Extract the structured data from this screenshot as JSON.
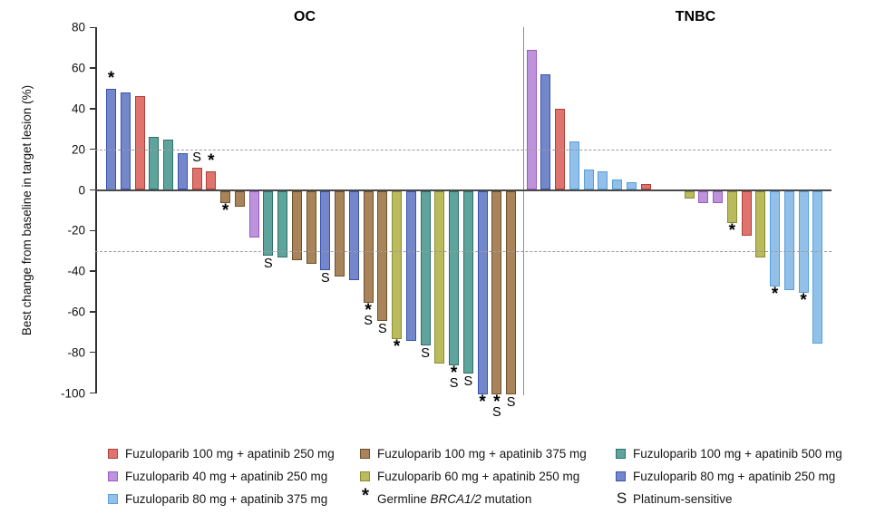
{
  "titles": {
    "left_panel": "OC",
    "right_panel": "TNBC"
  },
  "y_axis": {
    "label": "Best change from baseline in target lesion (%)",
    "ticks": [
      80,
      60,
      40,
      20,
      0,
      -20,
      -40,
      -60,
      -80,
      -100
    ]
  },
  "reference_lines": {
    "upper": 20,
    "lower": -30
  },
  "marks": {
    "star_symbol": "*",
    "sensitive_symbol": "S"
  },
  "groups": {
    "red": {
      "label": "Fuzuloparib 100 mg + apatinib 250 mg",
      "fill": "#DE746D",
      "border": "#B04038"
    },
    "brown": {
      "label": "Fuzuloparib 100 mg + apatinib 375 mg",
      "fill": "#A9845B",
      "border": "#6E512B"
    },
    "teal": {
      "label": "Fuzuloparib 100 mg + apatinib 500 mg",
      "fill": "#5FA49C",
      "border": "#2D7068"
    },
    "purple": {
      "label": "Fuzuloparib 40 mg + apatinib 250 mg",
      "fill": "#BD93DC",
      "border": "#9C59C6"
    },
    "yellow": {
      "label": "Fuzuloparib 60 mg + apatinib 250 mg",
      "fill": "#B9BB5C",
      "border": "#8A8C35"
    },
    "periwinkle": {
      "label": "Fuzuloparib 80 mg + apatinib 250 mg",
      "fill": "#7487CB",
      "border": "#3A53AE"
    },
    "skyblue": {
      "label": "Fuzuloparib 80 mg + apatinib 375 mg",
      "fill": "#92C0E8",
      "border": "#57A0DC"
    }
  },
  "legend": {
    "columns": [
      [
        "red",
        "purple",
        "skyblue"
      ],
      [
        "brown",
        "yellow",
        "STAR"
      ],
      [
        "teal",
        "periwinkle",
        "SENS"
      ]
    ],
    "star_item": {
      "symbol": "*",
      "parts": [
        {
          "t": "Germline ",
          "i": false
        },
        {
          "t": "BRCA1/2",
          "i": true
        },
        {
          "t": " mutation",
          "i": false
        }
      ]
    },
    "sensitive_item": {
      "symbol": "S",
      "label": "Platinum-sensitive"
    }
  },
  "chart_data": {
    "type": "bar",
    "title": "",
    "xlabel": "",
    "ylabel": "Best change from baseline in target lesion (%)",
    "ylim": [
      -100,
      80
    ],
    "grid": false,
    "legend_position": "bottom",
    "panels": [
      {
        "name": "OC",
        "segments": [
          {
            "bars": [
              {
                "value": 50,
                "group": "periwinkle",
                "marks": [
                  "*"
                ]
              },
              {
                "value": 48,
                "group": "periwinkle",
                "marks": []
              },
              {
                "value": 46,
                "group": "red",
                "marks": []
              },
              {
                "value": 26,
                "group": "teal",
                "marks": []
              },
              {
                "value": 25,
                "group": "teal",
                "marks": []
              },
              {
                "value": 18,
                "group": "periwinkle",
                "marks": []
              },
              {
                "value": 11,
                "group": "red",
                "marks": [
                  "S"
                ]
              },
              {
                "value": 9,
                "group": "red",
                "marks": [
                  "*"
                ]
              },
              {
                "value": -6,
                "group": "brown",
                "marks": [
                  "*"
                ]
              },
              {
                "value": -8,
                "group": "brown",
                "marks": []
              },
              {
                "value": -23,
                "group": "purple",
                "marks": []
              },
              {
                "value": -32,
                "group": "teal",
                "marks": [
                  "S"
                ]
              },
              {
                "value": -33,
                "group": "teal",
                "marks": []
              },
              {
                "value": -34,
                "group": "brown",
                "marks": []
              },
              {
                "value": -36,
                "group": "brown",
                "marks": []
              },
              {
                "value": -39,
                "group": "periwinkle",
                "marks": [
                  "S"
                ]
              },
              {
                "value": -42,
                "group": "brown",
                "marks": []
              },
              {
                "value": -44,
                "group": "periwinkle",
                "marks": []
              },
              {
                "value": -55,
                "group": "brown",
                "marks": [
                  "*",
                  "S"
                ]
              },
              {
                "value": -64,
                "group": "brown",
                "marks": [
                  "S"
                ]
              },
              {
                "value": -73,
                "group": "yellow",
                "marks": [
                  "*"
                ]
              },
              {
                "value": -74,
                "group": "periwinkle",
                "marks": []
              },
              {
                "value": -76,
                "group": "teal",
                "marks": [
                  "S"
                ]
              },
              {
                "value": -85,
                "group": "yellow",
                "marks": []
              },
              {
                "value": -86,
                "group": "teal",
                "marks": [
                  "*",
                  "S"
                ]
              },
              {
                "value": -90,
                "group": "teal",
                "marks": [
                  "S"
                ]
              },
              {
                "value": -100,
                "group": "periwinkle",
                "marks": [
                  "*"
                ]
              },
              {
                "value": -100,
                "group": "brown",
                "marks": [
                  "*",
                  "S"
                ]
              },
              {
                "value": -100,
                "group": "brown",
                "marks": [
                  "S"
                ]
              }
            ]
          }
        ]
      },
      {
        "name": "TNBC",
        "segments": [
          {
            "bars": [
              {
                "value": 69,
                "group": "purple",
                "marks": []
              },
              {
                "value": 57,
                "group": "periwinkle",
                "marks": []
              },
              {
                "value": 40,
                "group": "red",
                "marks": []
              },
              {
                "value": 24,
                "group": "skyblue",
                "marks": []
              },
              {
                "value": 10,
                "group": "skyblue",
                "marks": []
              },
              {
                "value": 9,
                "group": "skyblue",
                "marks": []
              },
              {
                "value": 5,
                "group": "skyblue",
                "marks": []
              },
              {
                "value": 4,
                "group": "skyblue",
                "marks": []
              },
              {
                "value": 3,
                "group": "red",
                "marks": []
              }
            ]
          },
          {
            "bars": [
              {
                "value": -4,
                "group": "yellow",
                "marks": []
              },
              {
                "value": -6,
                "group": "purple",
                "marks": []
              },
              {
                "value": -6,
                "group": "purple",
                "marks": []
              },
              {
                "value": -16,
                "group": "yellow",
                "marks": [
                  "*"
                ]
              },
              {
                "value": -22,
                "group": "red",
                "marks": []
              },
              {
                "value": -33,
                "group": "yellow",
                "marks": []
              },
              {
                "value": -47,
                "group": "skyblue",
                "marks": [
                  "*"
                ]
              },
              {
                "value": -49,
                "group": "skyblue",
                "marks": []
              },
              {
                "value": -50,
                "group": "skyblue",
                "marks": [
                  "*"
                ]
              },
              {
                "value": -75,
                "group": "skyblue",
                "marks": []
              }
            ]
          }
        ]
      }
    ]
  }
}
